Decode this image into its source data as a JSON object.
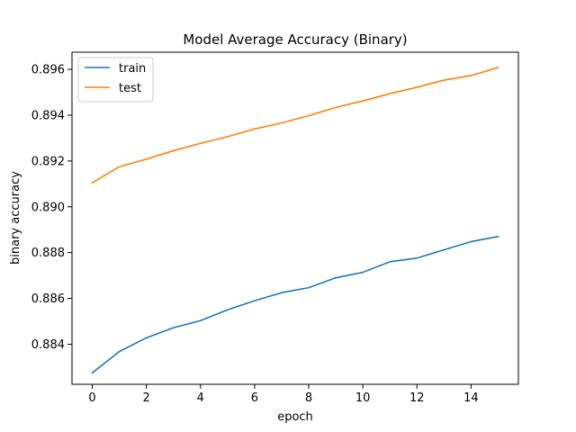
{
  "chart_data": {
    "type": "line",
    "title": "Model Average Accuracy (Binary)",
    "xlabel": "epoch",
    "ylabel": "binary accuracy",
    "xlim": [
      -0.75,
      15.75
    ],
    "ylim": [
      0.88225,
      0.89675
    ],
    "xticks": [
      0,
      2,
      4,
      6,
      8,
      10,
      12,
      14
    ],
    "yticks": [
      0.884,
      0.886,
      0.888,
      0.89,
      0.892,
      0.894,
      0.896
    ],
    "grid": false,
    "legend_position": "upper-left",
    "x": [
      0,
      1,
      2,
      3,
      4,
      5,
      6,
      7,
      8,
      9,
      10,
      11,
      12,
      13,
      14,
      15
    ],
    "series": [
      {
        "name": "train",
        "color": "#1f77b4",
        "values": [
          0.88275,
          0.88368,
          0.88428,
          0.88472,
          0.88503,
          0.8855,
          0.8859,
          0.88625,
          0.88647,
          0.8869,
          0.88714,
          0.8876,
          0.88776,
          0.88812,
          0.88848,
          0.8887
        ]
      },
      {
        "name": "test",
        "color": "#ff7f0e",
        "values": [
          0.89105,
          0.89175,
          0.89208,
          0.89245,
          0.89277,
          0.89306,
          0.8934,
          0.89366,
          0.89398,
          0.89434,
          0.89462,
          0.89494,
          0.89522,
          0.89553,
          0.89573,
          0.89608
        ]
      }
    ]
  }
}
